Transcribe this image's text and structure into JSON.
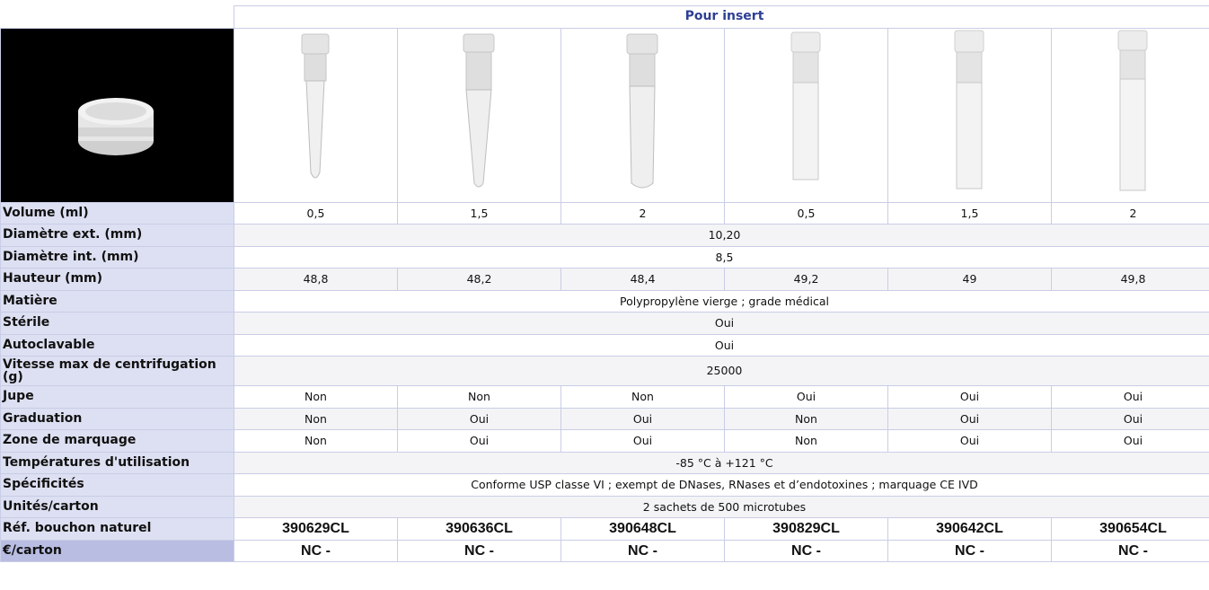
{
  "header": {
    "group_label": "Pour insert"
  },
  "images": {
    "cap": "cap-photo",
    "tubes": [
      "tube-0.5-skirtless",
      "tube-1.5-skirtless",
      "tube-2-skirtless",
      "tube-0.5-skirted",
      "tube-1.5-skirted",
      "tube-2-skirted"
    ]
  },
  "rows": {
    "volume": {
      "label": "Volume (ml)",
      "values": [
        "0,5",
        "1,5",
        "2",
        "0,5",
        "1,5",
        "2"
      ]
    },
    "diam_ext": {
      "label": "Diamètre ext. (mm)",
      "value": "10,20"
    },
    "diam_int": {
      "label": "Diamètre int. (mm)",
      "value": "8,5"
    },
    "hauteur": {
      "label": "Hauteur (mm)",
      "values": [
        "48,8",
        "48,2",
        "48,4",
        "49,2",
        "49",
        "49,8"
      ]
    },
    "matiere": {
      "label": "Matière",
      "value": "Polypropylène vierge ; grade médical"
    },
    "sterile": {
      "label": "Stérile",
      "value": "Oui"
    },
    "autoclavable": {
      "label": "Autoclavable",
      "value": "Oui"
    },
    "vitesse": {
      "label": "Vitesse max de centrifugation (g)",
      "value": "25000"
    },
    "jupe": {
      "label": "Jupe",
      "values": [
        "Non",
        "Non",
        "Non",
        "Oui",
        "Oui",
        "Oui"
      ]
    },
    "graduation": {
      "label": "Graduation",
      "values": [
        "Non",
        "Oui",
        "Oui",
        "Non",
        "Oui",
        "Oui"
      ]
    },
    "marquage": {
      "label": "Zone de marquage",
      "values": [
        "Non",
        "Oui",
        "Oui",
        "Non",
        "Oui",
        "Oui"
      ]
    },
    "temperatures": {
      "label": "Températures d'utilisation",
      "value": "-85 °C à +121 °C"
    },
    "specificites": {
      "label": "Spécificités",
      "value": "Conforme USP classe VI ; exempt de DNases, RNases et d’endotoxines ; marquage CE IVD"
    },
    "unites": {
      "label": "Unités/carton",
      "value": "2 sachets de 500 microtubes"
    },
    "ref": {
      "label": "Réf. bouchon naturel",
      "values": [
        "390629CL",
        "390636CL",
        "390648CL",
        "390829CL",
        "390642CL",
        "390654CL"
      ]
    },
    "prix": {
      "label": "€/carton",
      "values": [
        "NC -",
        "NC -",
        "NC -",
        "NC -",
        "NC -",
        "NC -"
      ]
    }
  },
  "colors": {
    "label_bg": "#dde0f2",
    "price_label_bg": "#b9bde2",
    "header_text": "#2e3f93",
    "border": "#c9cde6"
  }
}
